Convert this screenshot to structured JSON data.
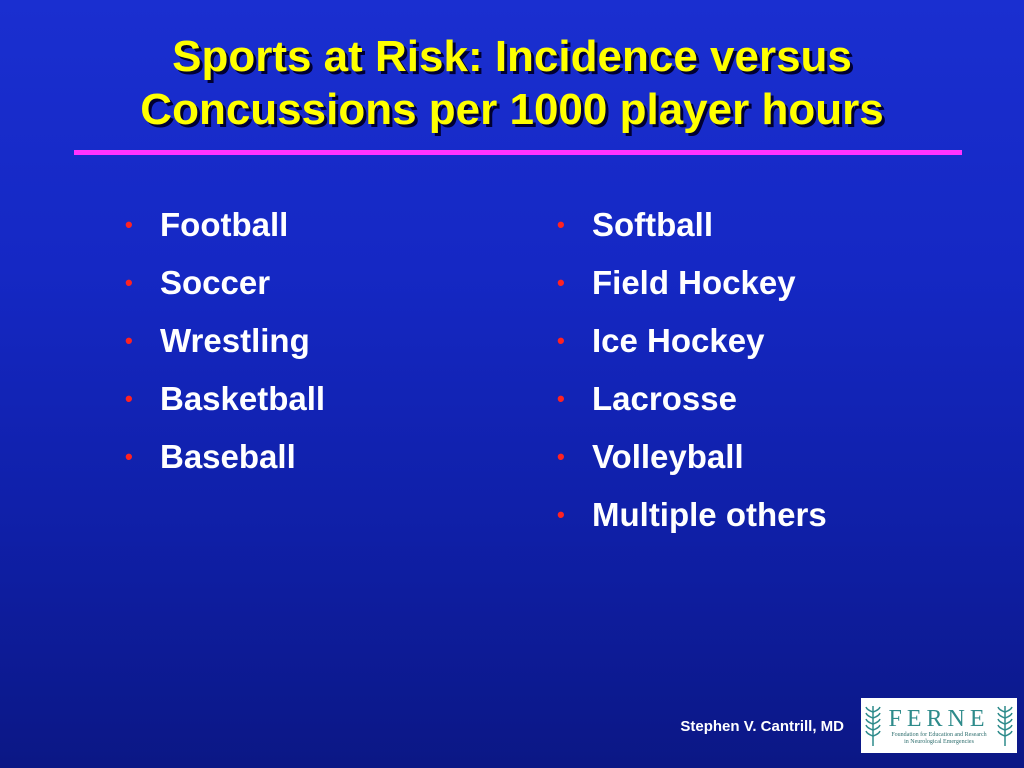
{
  "title": {
    "line1": "Sports at Risk: Incidence versus",
    "line2": "Concussions per 1000 player hours"
  },
  "bullet_glyph": "•",
  "left_list": [
    "Football",
    "Soccer",
    "Wrestling",
    "Basketball",
    "Baseball"
  ],
  "right_list": [
    "Softball",
    "Field Hockey",
    "Ice Hockey",
    "Lacrosse",
    "Volleyball",
    "Multiple others"
  ],
  "footer": {
    "author": "Stephen V. Cantrill, MD"
  },
  "logo": {
    "word": "FERNE",
    "subtitle_line1": "Foundation for Education and Research",
    "subtitle_line2": "in Neurological Emergencies"
  },
  "colors": {
    "background": "#1528c4",
    "title": "#ffff00",
    "rule": "#ff33ff",
    "bullet": "#ff2222",
    "text": "#ffffff",
    "logo_teal": "#2e8b8b"
  },
  "icons": [
    "leaf-icon"
  ]
}
